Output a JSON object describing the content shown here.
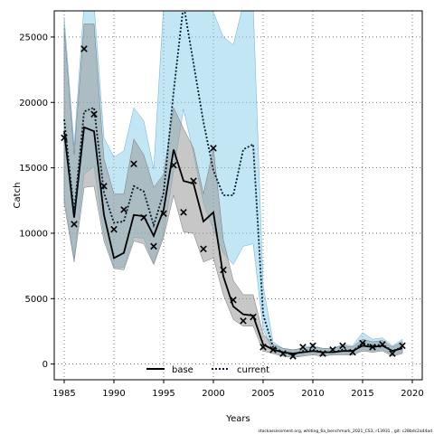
{
  "chart_data": {
    "type": "line",
    "xlabel": "Years",
    "ylabel": "Catch",
    "xlim": [
      1984,
      2021
    ],
    "ylim": [
      -1200,
      27000
    ],
    "x_ticks": [
      1985,
      1990,
      1995,
      2000,
      2005,
      2010,
      2015,
      2020
    ],
    "y_ticks": [
      0,
      5000,
      10000,
      15000,
      20000,
      25000
    ],
    "grid": true,
    "legend_position": "bottom-center",
    "footnote": "stockassessment.org, whiting_6a_benchmark_2021_CS3, r13931 , git: c28bdc2a44ad",
    "years": [
      1985,
      1986,
      1987,
      1988,
      1989,
      1990,
      1991,
      1992,
      1993,
      1994,
      1995,
      1996,
      1997,
      1998,
      1999,
      2000,
      2001,
      2002,
      2003,
      2004,
      2005,
      2006,
      2007,
      2008,
      2009,
      2010,
      2011,
      2012,
      2013,
      2014,
      2015,
      2016,
      2017,
      2018,
      2019
    ],
    "observed": {
      "name": "observed",
      "marker": "x",
      "values": [
        17300,
        10700,
        24100,
        19100,
        13600,
        10300,
        11800,
        15300,
        11200,
        9000,
        11500,
        15200,
        11600,
        14000,
        8800,
        16500,
        7200,
        4900,
        3300,
        3600,
        1300,
        1100,
        800,
        600,
        1300,
        1400,
        800,
        1100,
        1400,
        900,
        1600,
        1300,
        1500,
        800,
        1400
      ]
    },
    "series": [
      {
        "name": "base",
        "color": "#000000",
        "band_color": "#999999",
        "line_style": "solid",
        "values": [
          17800,
          11200,
          18100,
          17800,
          11400,
          8100,
          8500,
          11400,
          11300,
          9800,
          11800,
          16400,
          14000,
          13800,
          10900,
          11600,
          6700,
          4400,
          3800,
          3700,
          1500,
          1100,
          900,
          800,
          900,
          1000,
          900,
          900,
          1000,
          1000,
          1400,
          1300,
          1400,
          1000,
          1200
        ],
        "lower": [
          12300,
          7800,
          13500,
          13600,
          9400,
          7300,
          7200,
          9400,
          9200,
          7600,
          9700,
          12900,
          10100,
          10000,
          7800,
          8100,
          5300,
          3400,
          2900,
          2900,
          1000,
          800,
          600,
          500,
          600,
          700,
          600,
          700,
          700,
          700,
          1000,
          900,
          1000,
          600,
          800
        ],
        "upper": [
          25700,
          16000,
          26000,
          26000,
          15700,
          13000,
          13000,
          17200,
          16000,
          13500,
          14500,
          19600,
          18000,
          16500,
          13000,
          16500,
          9500,
          6400,
          5300,
          5300,
          2300,
          1500,
          1200,
          1100,
          1200,
          1300,
          1200,
          1200,
          1400,
          1300,
          1900,
          1700,
          1800,
          1300,
          1700
        ]
      },
      {
        "name": "current",
        "color": "#041c2e",
        "band_color": "#87ceeb",
        "line_style": "dotted",
        "values": [
          18700,
          11600,
          19300,
          19600,
          13100,
          10800,
          10900,
          13600,
          13200,
          10600,
          13100,
          20800,
          27500,
          23000,
          18500,
          14800,
          12900,
          12900,
          16400,
          16800,
          3800,
          1300,
          900,
          700,
          1000,
          1100,
          900,
          900,
          1100,
          1000,
          1600,
          1400,
          1500,
          1000,
          1300
        ],
        "lower": [
          12800,
          8100,
          14500,
          15100,
          9900,
          7400,
          7400,
          9700,
          9600,
          7700,
          10000,
          14700,
          19500,
          16100,
          12300,
          10300,
          8500,
          7600,
          9000,
          9200,
          2700,
          900,
          650,
          500,
          700,
          800,
          700,
          700,
          800,
          700,
          1100,
          1000,
          1100,
          700,
          900
        ],
        "upper": [
          26500,
          16700,
          27500,
          27500,
          17300,
          15800,
          16300,
          19600,
          18600,
          14900,
          27500,
          27500,
          27500,
          27500,
          27500,
          26900,
          25000,
          24400,
          27500,
          27500,
          6000,
          1700,
          1200,
          1000,
          1300,
          1400,
          1200,
          1200,
          1500,
          1400,
          2400,
          1900,
          2000,
          1400,
          1900
        ]
      }
    ]
  }
}
